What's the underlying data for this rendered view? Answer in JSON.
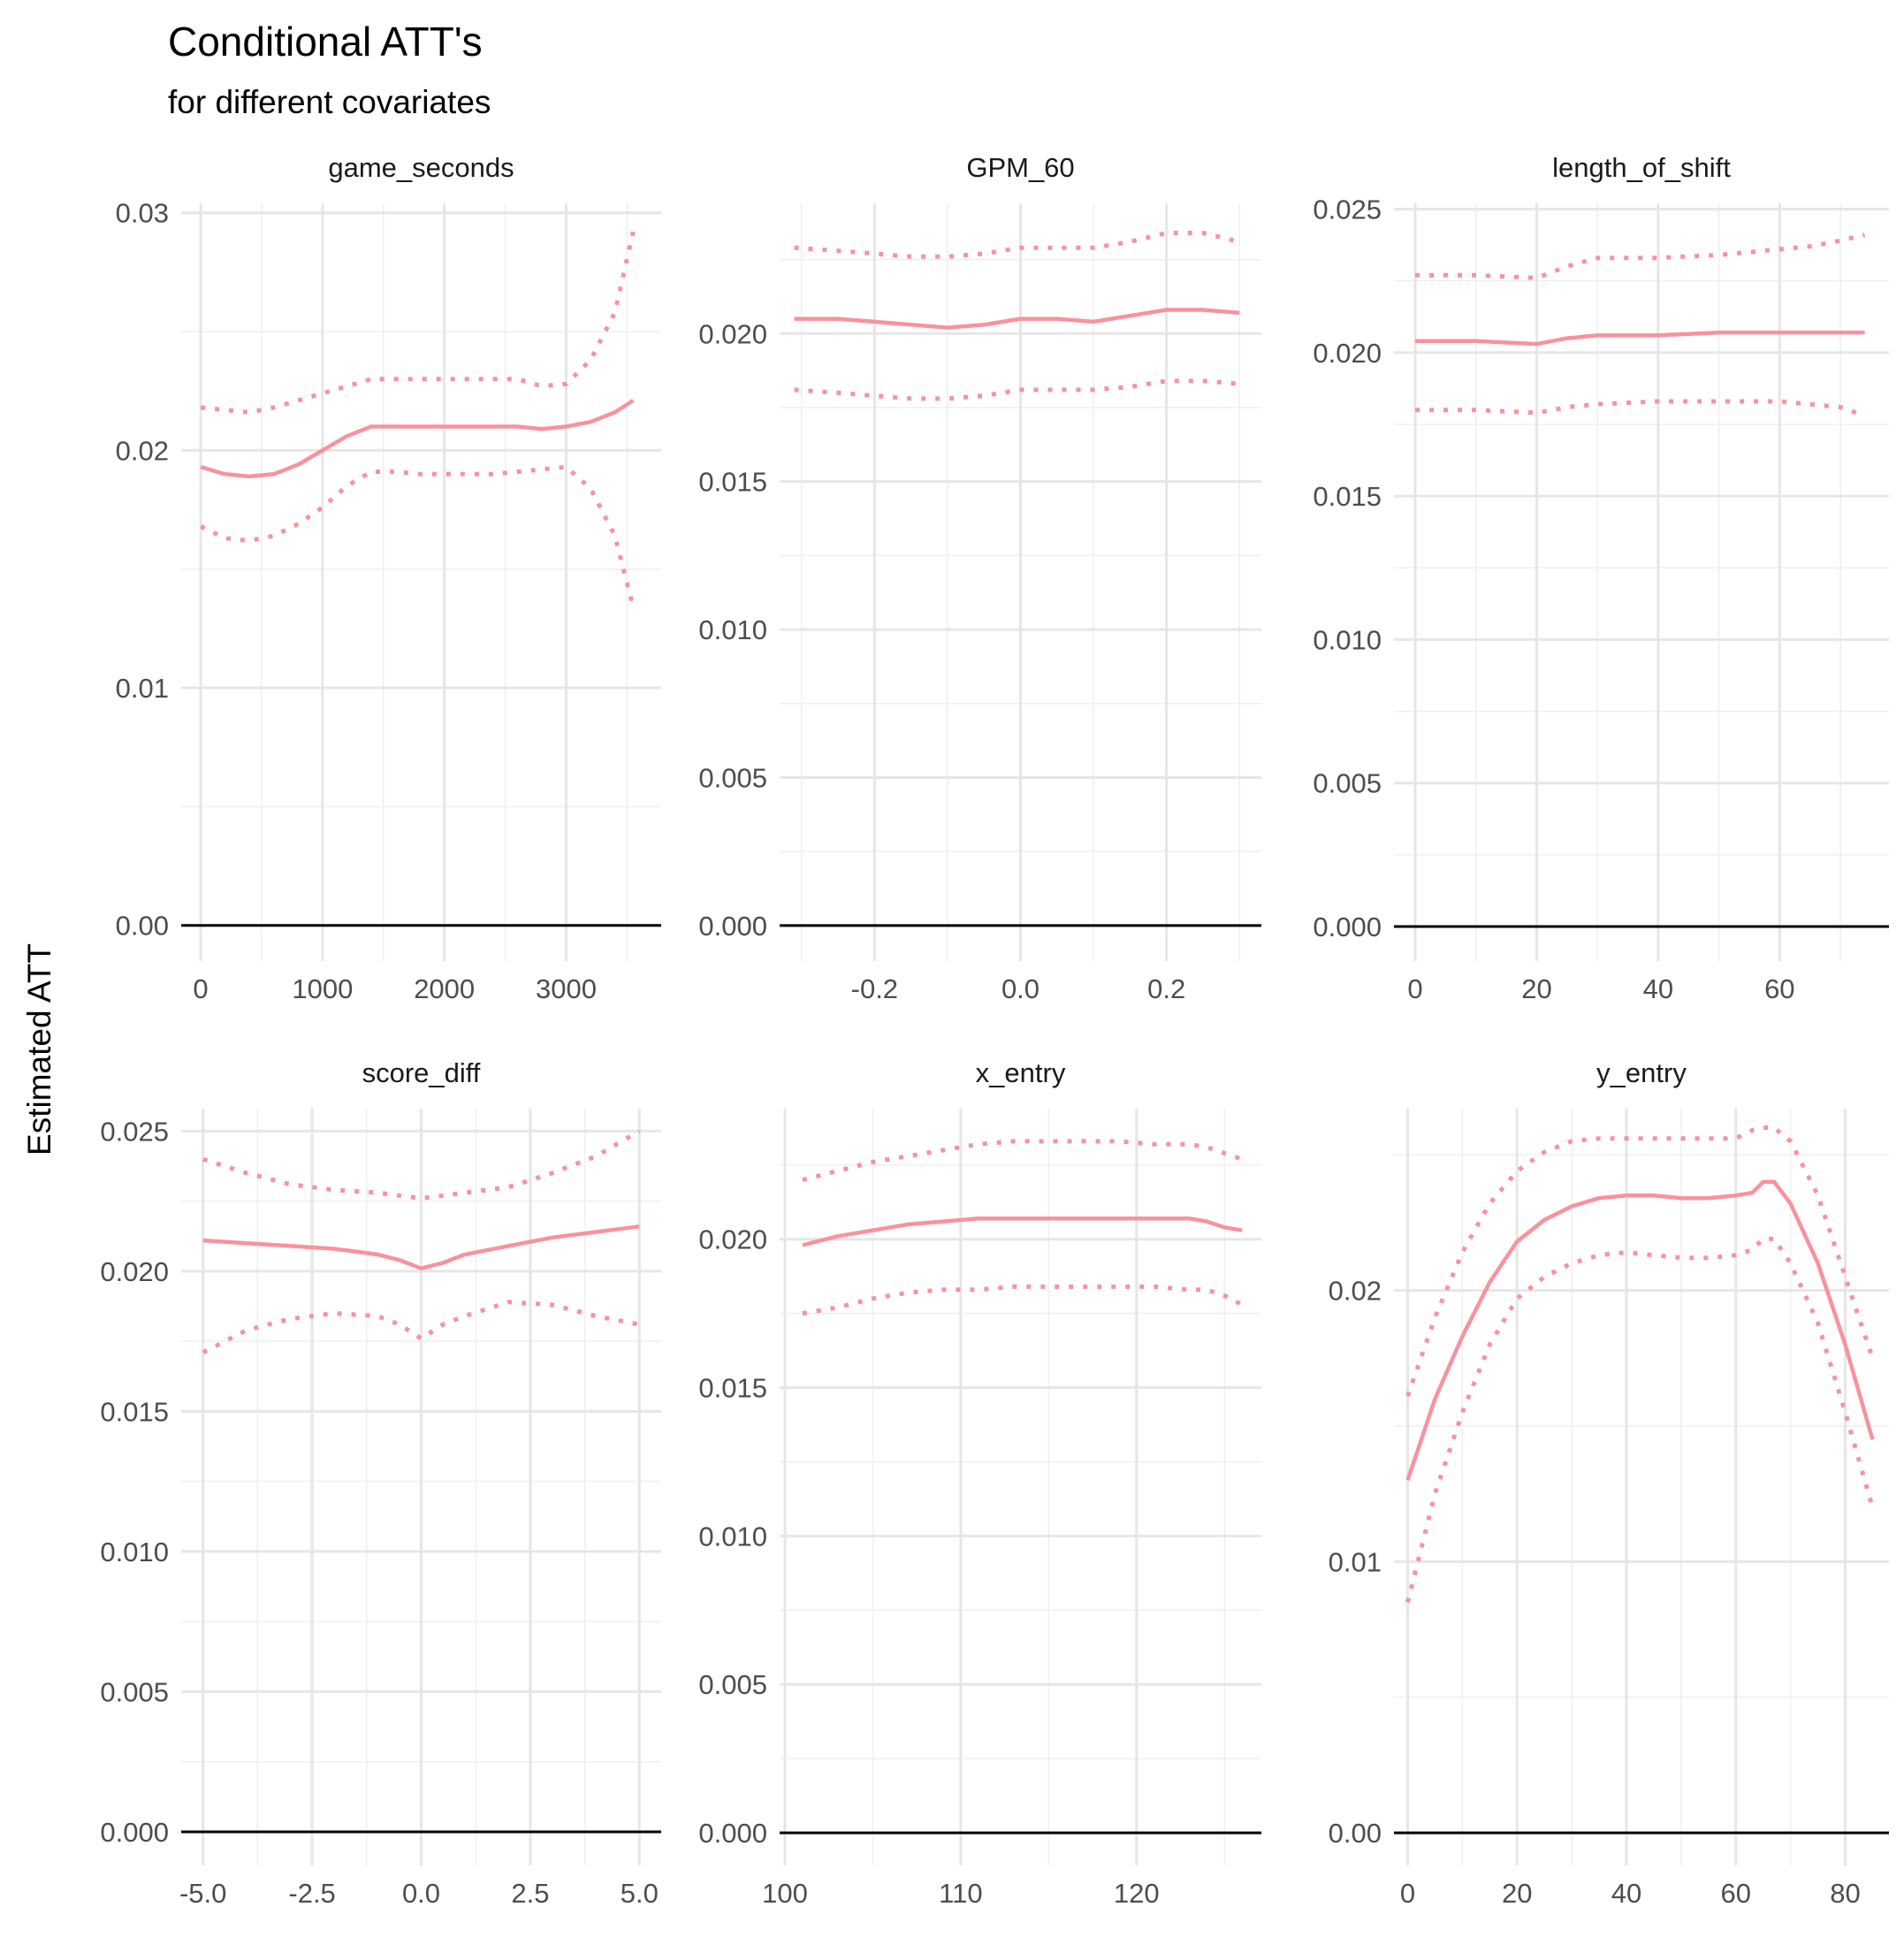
{
  "chart_data": {
    "type": "line",
    "title": "Conditional ATT's",
    "subtitle": "for different covariates",
    "ylabel": "Estimated ATT",
    "grid": true,
    "line_color": "#F8929E",
    "reference_line": {
      "y": 0,
      "color": "#000000"
    },
    "panels": [
      {
        "name": "game_seconds",
        "xlim": [
          -160,
          3780
        ],
        "ylim": [
          -0.0015,
          0.0304
        ],
        "x_ticks": [
          0,
          1000,
          2000,
          3000
        ],
        "x_tick_labels": [
          "0",
          "1000",
          "2000",
          "3000"
        ],
        "y_ticks": [
          0,
          0.01,
          0.02,
          0.03
        ],
        "y_tick_labels": [
          "0.00",
          "0.01",
          "0.02",
          "0.03"
        ],
        "x": [
          0,
          200,
          400,
          600,
          800,
          1000,
          1200,
          1400,
          1600,
          1800,
          2000,
          2200,
          2400,
          2600,
          2800,
          3000,
          3200,
          3400,
          3550
        ],
        "estimate": [
          0.0193,
          0.019,
          0.0189,
          0.019,
          0.0194,
          0.02,
          0.0206,
          0.021,
          0.021,
          0.021,
          0.021,
          0.021,
          0.021,
          0.021,
          0.0209,
          0.021,
          0.0212,
          0.0216,
          0.0221
        ],
        "upper": [
          0.0218,
          0.0217,
          0.0216,
          0.0218,
          0.0221,
          0.0224,
          0.0227,
          0.023,
          0.023,
          0.023,
          0.023,
          0.023,
          0.023,
          0.023,
          0.0227,
          0.0228,
          0.0238,
          0.0258,
          0.0292
        ],
        "lower": [
          0.0168,
          0.0163,
          0.0162,
          0.0164,
          0.0169,
          0.0176,
          0.0185,
          0.0191,
          0.0191,
          0.019,
          0.019,
          0.019,
          0.019,
          0.0191,
          0.0192,
          0.0193,
          0.0184,
          0.0164,
          0.0134
        ]
      },
      {
        "name": "GPM_60",
        "xlim": [
          -0.33,
          0.33
        ],
        "ylim": [
          -0.0012,
          0.0244
        ],
        "x_ticks": [
          -0.2,
          0.0,
          0.2
        ],
        "x_tick_labels": [
          "-0.2",
          "0.0",
          "0.2"
        ],
        "y_ticks": [
          0,
          0.005,
          0.01,
          0.015,
          0.02
        ],
        "y_tick_labels": [
          "0.000",
          "0.005",
          "0.010",
          "0.015",
          "0.020"
        ],
        "x": [
          -0.31,
          -0.25,
          -0.2,
          -0.15,
          -0.1,
          -0.05,
          0.0,
          0.05,
          0.1,
          0.15,
          0.2,
          0.25,
          0.3
        ],
        "estimate": [
          0.0205,
          0.0205,
          0.0204,
          0.0203,
          0.0202,
          0.0203,
          0.0205,
          0.0205,
          0.0204,
          0.0206,
          0.0208,
          0.0208,
          0.0207
        ],
        "upper": [
          0.0229,
          0.0228,
          0.0227,
          0.0226,
          0.0226,
          0.0227,
          0.0229,
          0.0229,
          0.0229,
          0.0231,
          0.0234,
          0.0234,
          0.0231
        ],
        "lower": [
          0.0181,
          0.018,
          0.0179,
          0.0178,
          0.0178,
          0.0179,
          0.0181,
          0.0181,
          0.0181,
          0.0182,
          0.0184,
          0.0184,
          0.0183
        ]
      },
      {
        "name": "length_of_shift",
        "xlim": [
          -3.5,
          78
        ],
        "ylim": [
          -0.0012,
          0.0252
        ],
        "x_ticks": [
          0,
          20,
          40,
          60
        ],
        "x_tick_labels": [
          "0",
          "20",
          "40",
          "60"
        ],
        "y_ticks": [
          0,
          0.005,
          0.01,
          0.015,
          0.02,
          0.025
        ],
        "y_tick_labels": [
          "0.000",
          "0.005",
          "0.010",
          "0.015",
          "0.020",
          "0.025"
        ],
        "x": [
          0,
          10,
          20,
          25,
          30,
          40,
          50,
          60,
          65,
          70,
          74
        ],
        "estimate": [
          0.0204,
          0.0204,
          0.0203,
          0.0205,
          0.0206,
          0.0206,
          0.0207,
          0.0207,
          0.0207,
          0.0207,
          0.0207
        ],
        "upper": [
          0.0227,
          0.0227,
          0.0226,
          0.023,
          0.0233,
          0.0233,
          0.0234,
          0.0236,
          0.0237,
          0.0239,
          0.0241
        ],
        "lower": [
          0.018,
          0.018,
          0.0179,
          0.0181,
          0.0182,
          0.0183,
          0.0183,
          0.0183,
          0.0182,
          0.0181,
          0.0178
        ]
      },
      {
        "name": "score_diff",
        "xlim": [
          -5.5,
          5.5
        ],
        "ylim": [
          -0.0012,
          0.0258
        ],
        "x_ticks": [
          -5.0,
          -2.5,
          0.0,
          2.5,
          5.0
        ],
        "x_tick_labels": [
          "-5.0",
          "-2.5",
          "0.0",
          "2.5",
          "5.0"
        ],
        "y_ticks": [
          0,
          0.005,
          0.01,
          0.015,
          0.02,
          0.025
        ],
        "y_tick_labels": [
          "0.000",
          "0.005",
          "0.010",
          "0.015",
          "0.020",
          "0.025"
        ],
        "x": [
          -5,
          -4,
          -3,
          -2,
          -1,
          -0.5,
          0,
          0.5,
          1,
          2,
          3,
          4,
          5
        ],
        "estimate": [
          0.0211,
          0.021,
          0.0209,
          0.0208,
          0.0206,
          0.0204,
          0.0201,
          0.0203,
          0.0206,
          0.0209,
          0.0212,
          0.0214,
          0.0216
        ],
        "upper": [
          0.024,
          0.0235,
          0.0231,
          0.0229,
          0.0228,
          0.0227,
          0.0226,
          0.0227,
          0.0228,
          0.023,
          0.0235,
          0.0241,
          0.025
        ],
        "lower": [
          0.0171,
          0.0179,
          0.0183,
          0.0185,
          0.0184,
          0.0181,
          0.0176,
          0.0181,
          0.0184,
          0.0189,
          0.0188,
          0.0184,
          0.0181
        ]
      },
      {
        "name": "x_entry",
        "xlim": [
          99.7,
          127.1
        ],
        "ylim": [
          -0.0011,
          0.0244
        ],
        "x_ticks": [
          100,
          110,
          120
        ],
        "x_tick_labels": [
          "100",
          "110",
          "120"
        ],
        "y_ticks": [
          0,
          0.005,
          0.01,
          0.015,
          0.02
        ],
        "y_tick_labels": [
          "0.000",
          "0.005",
          "0.010",
          "0.015",
          "0.020"
        ],
        "x": [
          101,
          103,
          105,
          107,
          109,
          111,
          113,
          115,
          117,
          119,
          121,
          123,
          124,
          125,
          126
        ],
        "estimate": [
          0.0198,
          0.0201,
          0.0203,
          0.0205,
          0.0206,
          0.0207,
          0.0207,
          0.0207,
          0.0207,
          0.0207,
          0.0207,
          0.0207,
          0.0206,
          0.0204,
          0.0203
        ],
        "upper": [
          0.022,
          0.0223,
          0.0226,
          0.0228,
          0.023,
          0.0232,
          0.0233,
          0.0233,
          0.0233,
          0.0233,
          0.0232,
          0.0232,
          0.0231,
          0.0229,
          0.0227
        ],
        "lower": [
          0.0175,
          0.0177,
          0.018,
          0.0182,
          0.0183,
          0.0183,
          0.0184,
          0.0184,
          0.0184,
          0.0184,
          0.0184,
          0.0183,
          0.0183,
          0.0181,
          0.0178
        ]
      },
      {
        "name": "y_entry",
        "xlim": [
          -2.5,
          88
        ],
        "ylim": [
          -0.0012,
          0.0267
        ],
        "x_ticks": [
          0,
          20,
          40,
          60,
          80
        ],
        "x_tick_labels": [
          "0",
          "20",
          "40",
          "60",
          "80"
        ],
        "y_ticks": [
          0,
          0.01,
          0.02
        ],
        "y_tick_labels": [
          "0.00",
          "0.01",
          "0.02"
        ],
        "x": [
          0,
          5,
          10,
          15,
          20,
          25,
          30,
          35,
          40,
          45,
          50,
          55,
          60,
          63,
          65,
          67,
          70,
          75,
          80,
          85
        ],
        "estimate": [
          0.013,
          0.016,
          0.0183,
          0.0203,
          0.0218,
          0.0226,
          0.0231,
          0.0234,
          0.0235,
          0.0235,
          0.0234,
          0.0234,
          0.0235,
          0.0236,
          0.024,
          0.024,
          0.0232,
          0.021,
          0.018,
          0.0145
        ],
        "upper": [
          0.0161,
          0.019,
          0.0214,
          0.0232,
          0.0244,
          0.0251,
          0.0255,
          0.0256,
          0.0256,
          0.0256,
          0.0256,
          0.0256,
          0.0256,
          0.0259,
          0.026,
          0.026,
          0.0255,
          0.0235,
          0.0205,
          0.0175
        ],
        "lower": [
          0.0085,
          0.0125,
          0.0155,
          0.018,
          0.0197,
          0.0205,
          0.021,
          0.0213,
          0.0214,
          0.0213,
          0.0212,
          0.0212,
          0.0213,
          0.0215,
          0.0219,
          0.0219,
          0.021,
          0.0188,
          0.0155,
          0.012
        ]
      }
    ]
  }
}
